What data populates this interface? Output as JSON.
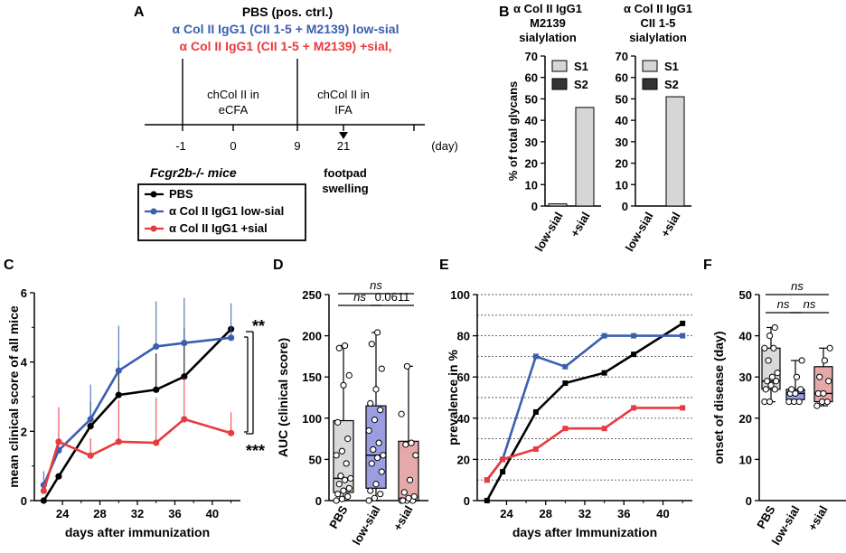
{
  "panels": {
    "A": "A",
    "B": "B",
    "C": "C",
    "D": "D",
    "E": "E",
    "F": "F"
  },
  "colors": {
    "pbs": "#000000",
    "lowsial": "#3a5fb0",
    "sial": "#e83a3f",
    "s1": "#d6d6d6",
    "s2": "#333333",
    "boxPbs": "#d9d9d9",
    "boxLow": "#9a9ee0",
    "boxSial": "#e6a9a9"
  },
  "panelA": {
    "line1": "PBS (pos. ctrl.)",
    "line2": "α Col II IgG1 (CII 1-5 + M2139) low-sial",
    "line3": "α Col II IgG1 (CII 1-5 + M2139) +sial,",
    "event1a": "chCol II in",
    "event1b": "eCFA",
    "event2a": "chCol II in",
    "event2b": "IFA",
    "ticks": [
      "-1",
      "0",
      "9",
      "21"
    ],
    "unit": "(day)",
    "footpad1": "footpad",
    "footpad2": "swelling",
    "mice": "Fcgr2b-/- mice",
    "legend": [
      "PBS",
      "α Col II IgG1 low-sial",
      "α Col II IgG1 +sial"
    ]
  },
  "chart_data": [
    {
      "panel": "B-left",
      "type": "bar",
      "title": "α Col II IgG1 M2139 sialylation",
      "title_lines": [
        "α Col II IgG1",
        "M2139",
        "sialylation"
      ],
      "categories": [
        "low-sial",
        "+sial"
      ],
      "series": [
        {
          "name": "S1",
          "values": [
            1,
            46
          ]
        },
        {
          "name": "S2",
          "values": [
            0,
            0
          ]
        }
      ],
      "ylabel": "% of total glycans",
      "ylim": [
        0,
        70
      ],
      "yticks": [
        "0",
        "10",
        "20",
        "30",
        "40",
        "50",
        "60",
        "70"
      ],
      "legend": [
        "S1",
        "S2"
      ]
    },
    {
      "panel": "B-right",
      "type": "bar",
      "title": "α Col II IgG1 CII 1-5 sialylation",
      "title_lines": [
        "α Col II IgG1",
        "CII 1-5",
        "sialylation"
      ],
      "categories": [
        "low-sial",
        "+sial"
      ],
      "series": [
        {
          "name": "S1",
          "values": [
            0,
            51
          ]
        },
        {
          "name": "S2",
          "values": [
            0,
            0
          ]
        }
      ],
      "ylim": [
        0,
        70
      ],
      "yticks": [
        "0",
        "10",
        "20",
        "30",
        "40",
        "50",
        "60",
        "70"
      ],
      "legend": [
        "S1",
        "S2"
      ]
    },
    {
      "panel": "C",
      "type": "line",
      "xlabel": "days after immunization",
      "ylabel": "mean clinical score of all mice",
      "xlim": [
        21,
        43
      ],
      "ylim": [
        0,
        6
      ],
      "xticks": [
        "24",
        "28",
        "32",
        "36",
        "40"
      ],
      "yticks": [
        "0",
        "2",
        "4",
        "6"
      ],
      "series": [
        {
          "name": "PBS",
          "x": [
            22,
            23.6,
            27,
            30,
            34,
            37,
            42
          ],
          "y": [
            0,
            0.7,
            2.15,
            3.05,
            3.2,
            3.58,
            4.95
          ],
          "err": [
            0,
            0,
            0.7,
            1.0,
            1.05,
            1.4,
            0
          ]
        },
        {
          "name": "α Col II IgG1 low-sial",
          "x": [
            22,
            23.6,
            27,
            30,
            34,
            37,
            42
          ],
          "y": [
            0.45,
            1.45,
            2.35,
            3.75,
            4.45,
            4.55,
            4.7
          ],
          "err": [
            0.4,
            0.5,
            1.0,
            1.3,
            1.3,
            1.3,
            1.0
          ]
        },
        {
          "name": "α Col II IgG1 +sial",
          "x": [
            22,
            23.6,
            27,
            30,
            34,
            37,
            42
          ],
          "y": [
            0.28,
            1.7,
            1.3,
            1.7,
            1.67,
            2.35,
            1.95
          ],
          "err": [
            0.2,
            1.0,
            0.5,
            1.2,
            1.3,
            1.2,
            0.6
          ]
        }
      ],
      "annotations": [
        "**",
        "***"
      ]
    },
    {
      "panel": "D",
      "type": "box",
      "ylabel": "AUC (clinical score)",
      "ylim": [
        0,
        250
      ],
      "yticks": [
        "0",
        "50",
        "100",
        "150",
        "200",
        "250"
      ],
      "categories": [
        "PBS",
        "low-sial",
        "+sial"
      ],
      "boxes": [
        {
          "min": 0,
          "q1": 10,
          "median": 27,
          "q3": 97,
          "max": 188,
          "points": [
            0,
            2,
            5,
            8,
            12,
            15,
            20,
            25,
            27,
            30,
            45,
            55,
            60,
            75,
            95,
            140,
            152,
            185,
            188
          ]
        },
        {
          "min": 0,
          "q1": 15,
          "median": 55,
          "q3": 115,
          "max": 204,
          "points": [
            0,
            3,
            8,
            12,
            20,
            35,
            45,
            52,
            55,
            62,
            70,
            85,
            98,
            110,
            118,
            135,
            160,
            190,
            204
          ]
        },
        {
          "min": 0,
          "q1": 0,
          "median": 0,
          "q3": 72,
          "max": 163,
          "points": [
            0,
            0,
            0,
            0,
            3,
            5,
            10,
            25,
            55,
            68,
            70,
            105,
            163
          ]
        }
      ],
      "brackets": [
        "ns",
        "ns",
        "0.0611"
      ]
    },
    {
      "panel": "E",
      "type": "line",
      "xlabel": "days after Immunization",
      "ylabel": "prevalence in %",
      "xlim": [
        21,
        43
      ],
      "ylim": [
        0,
        100
      ],
      "xticks": [
        "24",
        "28",
        "32",
        "36",
        "40"
      ],
      "yticks": [
        "0",
        "20",
        "40",
        "60",
        "80",
        "100"
      ],
      "series": [
        {
          "name": "PBS",
          "x": [
            22,
            23.6,
            27,
            30,
            34,
            37,
            42
          ],
          "y": [
            0,
            14,
            43,
            57,
            62,
            71,
            86
          ]
        },
        {
          "name": "α Col II IgG1 low-sial",
          "x": [
            22,
            23.6,
            27,
            30,
            34,
            37,
            42
          ],
          "y": [
            10,
            20,
            70,
            65,
            80,
            80,
            80
          ]
        },
        {
          "name": "α Col II IgG1 +sial",
          "x": [
            22,
            23.6,
            27,
            30,
            34,
            37,
            42
          ],
          "y": [
            10,
            20,
            25,
            35,
            35,
            45,
            45
          ]
        }
      ]
    },
    {
      "panel": "F",
      "type": "box",
      "ylabel": "onset of disease (day)",
      "ylim": [
        0,
        50
      ],
      "yticks": [
        "0",
        "10",
        "20",
        "30",
        "40",
        "50"
      ],
      "categories": [
        "PBS",
        "low-sial",
        "+sial"
      ],
      "boxes": [
        {
          "min": 24,
          "q1": 27,
          "median": 29,
          "q3": 37,
          "max": 42,
          "points": [
            24,
            24,
            27,
            27,
            28,
            29,
            29,
            30,
            31,
            34,
            37,
            37,
            40,
            42
          ]
        },
        {
          "min": 24,
          "q1": 24.5,
          "median": 26,
          "q3": 27,
          "max": 34,
          "points": [
            24,
            24,
            24,
            26,
            26,
            27,
            27,
            30,
            34
          ]
        },
        {
          "min": 23,
          "q1": 24,
          "median": 26,
          "q3": 32.5,
          "max": 37,
          "points": [
            23,
            24,
            24,
            26,
            26,
            29,
            30,
            34,
            37
          ]
        }
      ],
      "brackets": [
        "ns",
        "ns",
        "ns"
      ]
    }
  ]
}
